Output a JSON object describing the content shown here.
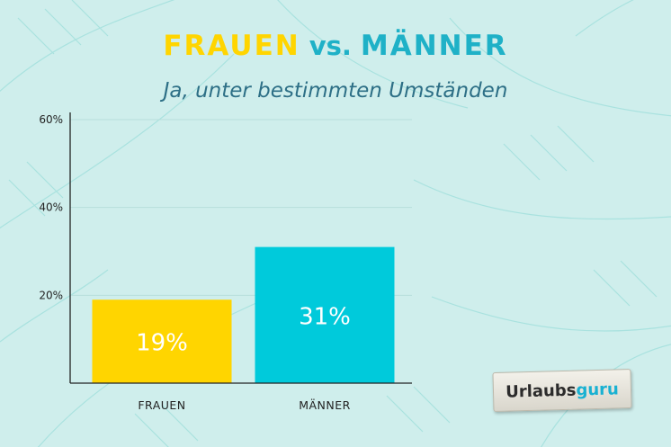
{
  "header": {
    "title_women": "FRAUEN",
    "title_vs": "vs.",
    "title_men": "MÄNNER",
    "subtitle": "Ja, unter bestimmten Umständen"
  },
  "logo": {
    "part1": "Urlaubs",
    "part2": "guru"
  },
  "colors": {
    "women": "#ffd500",
    "men": "#00cadb",
    "title_women": "#ffd500",
    "title_men": "#1fb1c7",
    "subtitle": "#2d6f86",
    "axis": "#222222",
    "background": "#cfeeec"
  },
  "chart_data": {
    "type": "bar",
    "categories": [
      "FRAUEN",
      "MÄNNER"
    ],
    "values": [
      19,
      31
    ],
    "value_labels": [
      "19%",
      "31%"
    ],
    "ylim": [
      0,
      60
    ],
    "yticks": [
      20,
      40,
      60
    ],
    "ytick_labels": [
      "20%",
      "40%",
      "60%"
    ],
    "grid": true,
    "title": "FRAUEN vs. MÄNNER",
    "subtitle": "Ja, unter bestimmten Umständen"
  }
}
